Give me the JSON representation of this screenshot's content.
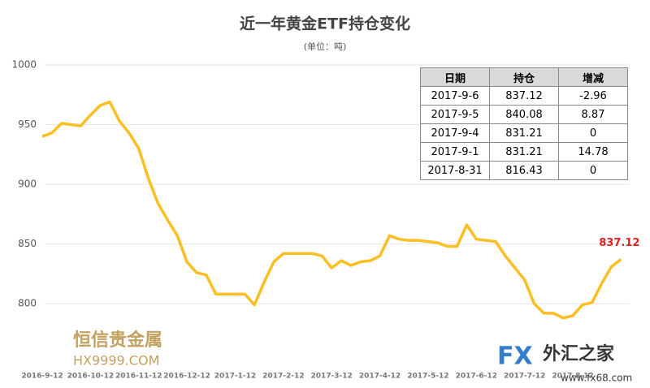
{
  "chart_data": {
    "type": "line",
    "title": "近一年黄金ETF持仓变化",
    "subtitle": "(单位：吨)",
    "categories": [
      "2016-9-12",
      null,
      null,
      null,
      null,
      "2016-10-12",
      null,
      null,
      null,
      null,
      "2016-11-12",
      null,
      null,
      null,
      null,
      "2016-12-12",
      null,
      null,
      null,
      null,
      "2017-1-12",
      null,
      null,
      null,
      null,
      "2017-2-12",
      null,
      null,
      null,
      null,
      "2017-3-12",
      null,
      null,
      null,
      null,
      "2017-4-12",
      null,
      null,
      null,
      null,
      "2017-5-12",
      null,
      null,
      null,
      null,
      "2017-6-12",
      null,
      null,
      null,
      null,
      "2017-7-12",
      null,
      null,
      null,
      null,
      "2017-8-12",
      null,
      null,
      null,
      null,
      null
    ],
    "series": [
      {
        "color": "#fbbf24",
        "values": [
          940,
          943,
          951,
          950,
          949,
          958,
          966,
          969,
          953,
          943,
          930,
          905,
          884,
          870,
          857,
          835,
          826,
          824,
          808,
          808,
          808,
          808,
          799,
          818,
          835,
          842,
          842,
          842,
          842,
          840,
          830,
          836,
          832,
          835,
          836,
          840,
          857,
          854,
          853,
          853,
          852,
          851,
          848,
          848,
          866,
          854,
          853,
          852,
          840,
          830,
          820,
          800,
          792,
          792,
          788,
          790,
          799,
          801,
          817,
          831,
          837.12
        ]
      }
    ],
    "ylim": [
      745,
      1005
    ],
    "yticks": [
      800,
      850,
      900,
      950,
      1000
    ],
    "grid": true,
    "label_color": "#e02020",
    "table": {
      "header": [
        "日期",
        "持仓",
        "增减"
      ],
      "rows": [
        [
          "2017-9-6",
          "837.12",
          "-2.96"
        ],
        [
          "2017-9-5",
          "840.08",
          "8.87"
        ],
        [
          "2017-9-4",
          "831.21",
          "0"
        ],
        [
          "2017-9-1",
          "831.21",
          "14.78"
        ],
        [
          "2017-8-31",
          "816.43",
          "0"
        ]
      ]
    },
    "watermarks": [
      "恒信贵金属",
      "HX9999.COM",
      "FX",
      "外汇之家",
      "www.fx68.com"
    ]
  }
}
